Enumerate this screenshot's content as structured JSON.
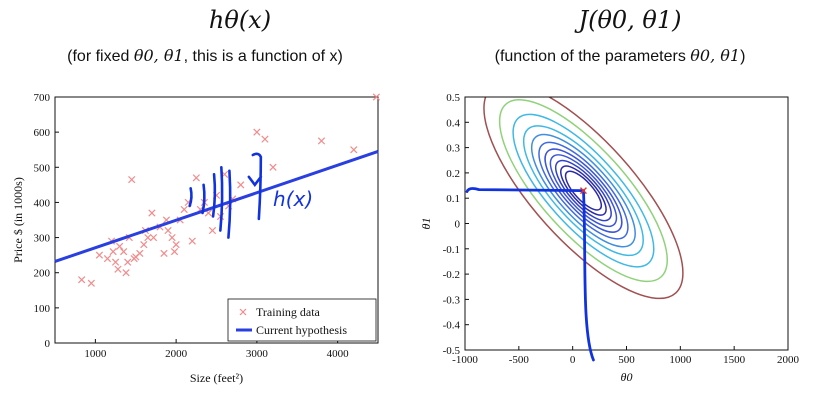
{
  "left": {
    "title": "hθ(x)",
    "subtitle_pre": "(for fixed ",
    "subtitle_math": "θ0, θ1",
    "subtitle_post": ", this is a function of x)",
    "annotation": "h(x)"
  },
  "right": {
    "title": "J(θ0, θ1)",
    "subtitle_pre": "(function of the parameters ",
    "subtitle_math": "θ0, θ1",
    "subtitle_post": ")"
  },
  "colors": {
    "training": "#f28b8b",
    "hypothesis": "#2a3fe0",
    "ink": "#1133dd",
    "contours": [
      "#2a2aa8",
      "#3040c8",
      "#3b55d8",
      "#3f6ae0",
      "#3f8ee0",
      "#3fb8e6",
      "#8fd27a",
      "#a05050"
    ]
  },
  "chart_data": [
    {
      "type": "scatter",
      "xlabel": "Size (feet²)",
      "ylabel": "Price $ (in 1000s)",
      "xlim": [
        500,
        4500
      ],
      "ylim": [
        0,
        700
      ],
      "xticks": [
        1000,
        2000,
        3000,
        4000
      ],
      "yticks": [
        0,
        100,
        200,
        300,
        400,
        500,
        600,
        700
      ],
      "grid": false,
      "legend": "bottom-right",
      "series": [
        {
          "name": "Training data",
          "kind": "points",
          "points": [
            [
              830,
              180
            ],
            [
              950,
              170
            ],
            [
              1050,
              250
            ],
            [
              1150,
              240
            ],
            [
              1200,
              290
            ],
            [
              1220,
              260
            ],
            [
              1250,
              230
            ],
            [
              1280,
              210
            ],
            [
              1300,
              275
            ],
            [
              1350,
              260
            ],
            [
              1380,
              200
            ],
            [
              1400,
              230
            ],
            [
              1420,
              300
            ],
            [
              1450,
              465
            ],
            [
              1480,
              240
            ],
            [
              1500,
              245
            ],
            [
              1550,
              255
            ],
            [
              1600,
              280
            ],
            [
              1620,
              320
            ],
            [
              1650,
              300
            ],
            [
              1700,
              370
            ],
            [
              1720,
              300
            ],
            [
              1800,
              330
            ],
            [
              1850,
              255
            ],
            [
              1880,
              350
            ],
            [
              1900,
              320
            ],
            [
              1950,
              300
            ],
            [
              1980,
              260
            ],
            [
              2000,
              280
            ],
            [
              2050,
              350
            ],
            [
              2100,
              380
            ],
            [
              2150,
              400
            ],
            [
              2200,
              290
            ],
            [
              2250,
              470
            ],
            [
              2300,
              380
            ],
            [
              2350,
              400
            ],
            [
              2400,
              370
            ],
            [
              2450,
              320
            ],
            [
              2500,
              420
            ],
            [
              2550,
              360
            ],
            [
              2600,
              480
            ],
            [
              2650,
              390
            ],
            [
              2700,
              410
            ],
            [
              2800,
              450
            ],
            [
              3000,
              600
            ],
            [
              3100,
              580
            ],
            [
              3200,
              500
            ],
            [
              3800,
              575
            ],
            [
              4200,
              550
            ],
            [
              4480,
              700
            ]
          ]
        },
        {
          "name": "Current hypothesis",
          "kind": "line",
          "points": [
            [
              500,
              232
            ],
            [
              4500,
              545
            ]
          ]
        }
      ]
    },
    {
      "type": "contour",
      "xlabel": "θ0",
      "ylabel": "θ1",
      "xlim": [
        -1000,
        2000
      ],
      "ylim": [
        -0.5,
        0.5
      ],
      "xticks": [
        -1000,
        -500,
        0,
        500,
        1000,
        1500,
        2000
      ],
      "yticks": [
        -0.5,
        -0.4,
        -0.3,
        -0.2,
        -0.1,
        0,
        0.1,
        0.2,
        0.3,
        0.4,
        0.5
      ],
      "grid": false,
      "center": [
        100,
        0.13
      ],
      "levels": [
        1,
        1.6,
        2.4,
        3.4,
        4.6,
        6.2,
        8.4,
        11.2,
        15.5,
        22,
        31
      ],
      "marker": [
        100,
        0.13
      ]
    }
  ]
}
